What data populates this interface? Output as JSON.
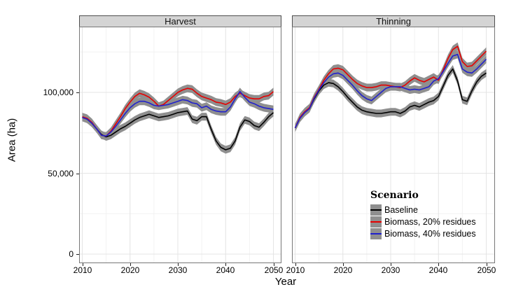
{
  "figure": {
    "y_axis": {
      "title": "Area (ha)",
      "ticks": [
        "0",
        "50,000",
        "100,000"
      ],
      "tick_values": [
        0,
        50000,
        100000
      ]
    },
    "x_axis": {
      "title": "Year",
      "ticks": [
        "2010",
        "2020",
        "2030",
        "2040",
        "2050"
      ],
      "tick_values": [
        2010,
        2020,
        2030,
        2040,
        2050
      ]
    },
    "legend": {
      "title": "Scenario",
      "key_fill": "#8f8f8f",
      "items": [
        {
          "label": "Baseline",
          "color": "#000000"
        },
        {
          "label": "Biomass, 20% residues",
          "color": "#e60000"
        },
        {
          "label": "Biomass, 40% residues",
          "color": "#2121cd"
        }
      ]
    },
    "colors": {
      "ribbon": "#8f8f8f",
      "grid_major": "#e4e4e4",
      "grid_minor": "#f2f2f2",
      "panel_border": "#777777",
      "strip_fill": "#d4d4d4"
    }
  },
  "chart_data": {
    "type": "line",
    "xlabel": "Year",
    "ylabel": "Area (ha)",
    "x_range": [
      2010,
      2050
    ],
    "ylim": [
      0,
      140000
    ],
    "y_major_gridlines": [
      0,
      50000,
      100000
    ],
    "y_minor_gridlines": [
      25000,
      75000,
      125000
    ],
    "x_major_gridlines": [
      2010,
      2020,
      2030,
      2040,
      2050
    ],
    "x_minor_gridlines": [
      2015,
      2025,
      2035,
      2045
    ],
    "legend_position": "inside-right-panel",
    "ribbon_halfwidth": 2400,
    "x": [
      2010,
      2011,
      2012,
      2013,
      2014,
      2015,
      2016,
      2017,
      2018,
      2019,
      2020,
      2021,
      2022,
      2023,
      2024,
      2025,
      2026,
      2027,
      2028,
      2029,
      2030,
      2031,
      2032,
      2033,
      2034,
      2035,
      2036,
      2037,
      2038,
      2039,
      2040,
      2041,
      2042,
      2043,
      2044,
      2045,
      2046,
      2047,
      2048,
      2049,
      2050
    ],
    "facets": [
      {
        "label": "Harvest",
        "series": [
          {
            "name": "Baseline",
            "values": [
              84500,
              83500,
              81000,
              77500,
              74000,
              72500,
              73500,
              75500,
              77500,
              79000,
              81000,
              83000,
              84500,
              85500,
              86500,
              85500,
              84500,
              85000,
              85500,
              86500,
              87500,
              88000,
              88500,
              83500,
              82500,
              85000,
              85000,
              77000,
              70000,
              66000,
              64500,
              65500,
              70000,
              78500,
              83000,
              82000,
              79500,
              78500,
              81500,
              85000,
              87500
            ]
          },
          {
            "name": "Biomass, 20% residues",
            "values": [
              85000,
              84000,
              81500,
              77500,
              73500,
              73000,
              76000,
              80500,
              85000,
              90000,
              94000,
              97500,
              99500,
              98500,
              97000,
              94500,
              91500,
              92500,
              95000,
              97500,
              100000,
              101500,
              102500,
              102000,
              99500,
              97500,
              96500,
              95500,
              94000,
              93500,
              92500,
              94000,
              97500,
              99500,
              98000,
              96500,
              96000,
              96000,
              97500,
              98000,
              100500
            ]
          },
          {
            "name": "Biomass, 40% residues",
            "values": [
              84500,
              83500,
              81000,
              77500,
              73500,
              73000,
              75500,
              79000,
              83000,
              87000,
              90500,
              93000,
              94500,
              94500,
              93500,
              92000,
              91500,
              92000,
              92500,
              93500,
              94500,
              95500,
              95000,
              93500,
              93000,
              90500,
              91500,
              89500,
              88500,
              88000,
              88000,
              91000,
              96000,
              100500,
              97000,
              94000,
              93000,
              91500,
              90500,
              90000,
              89500
            ]
          }
        ]
      },
      {
        "label": "Thinning",
        "series": [
          {
            "name": "Baseline",
            "values": [
              78000,
              84000,
              87500,
              90000,
              96000,
              101000,
              104500,
              106000,
              105500,
              103500,
              100500,
              97000,
              94000,
              91000,
              89000,
              88000,
              87500,
              87000,
              87000,
              87500,
              88000,
              88000,
              87000,
              88500,
              91000,
              92000,
              91000,
              92500,
              94000,
              95000,
              97500,
              104000,
              110500,
              114500,
              107000,
              95500,
              94500,
              101000,
              106500,
              110000,
              112000
            ]
          },
          {
            "name": "Biomass, 20% residues",
            "values": [
              78000,
              84500,
              88000,
              90500,
              97000,
              102000,
              107500,
              111500,
              114500,
              115000,
              114000,
              111000,
              108000,
              105500,
              104000,
              103000,
              103000,
              103500,
              104500,
              104500,
              104000,
              103500,
              103000,
              104500,
              107000,
              109000,
              107500,
              106500,
              108000,
              109500,
              107500,
              114000,
              121000,
              126500,
              128500,
              119000,
              116000,
              116500,
              119500,
              122500,
              125500
            ]
          },
          {
            "name": "Biomass, 40% residues",
            "values": [
              78000,
              84000,
              87500,
              90000,
              96500,
              101500,
              106000,
              109500,
              111500,
              112000,
              110500,
              107500,
              104500,
              101000,
              98000,
              96000,
              95000,
              97500,
              100000,
              102500,
              103500,
              103500,
              103500,
              102500,
              101500,
              102000,
              101500,
              102500,
              103500,
              107000,
              108500,
              113000,
              118000,
              122500,
              123500,
              114500,
              112500,
              112000,
              114500,
              117500,
              120500
            ]
          }
        ]
      }
    ]
  }
}
